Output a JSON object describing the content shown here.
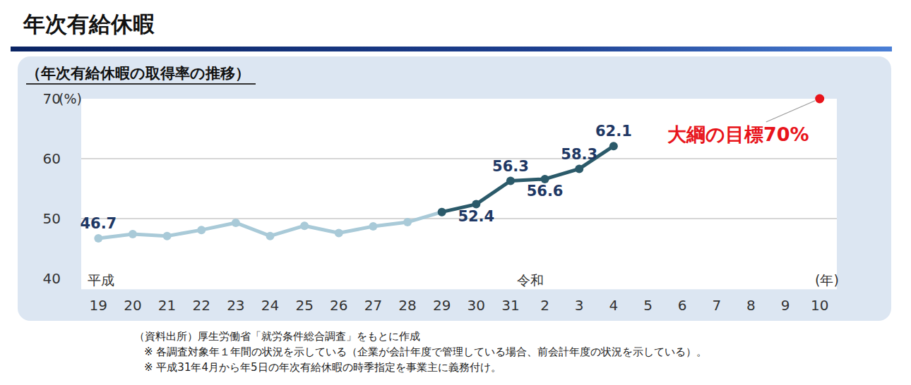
{
  "page_title": "年次有給休暇",
  "chart_data": {
    "type": "line",
    "title": "（年次有給休暇の取得率の推移）",
    "y_label": "(%)",
    "x_label": "(年)",
    "categories": [
      "19",
      "20",
      "21",
      "22",
      "23",
      "24",
      "25",
      "26",
      "27",
      "28",
      "29",
      "30",
      "31",
      "2",
      "3",
      "4",
      "5",
      "6",
      "7",
      "8",
      "9",
      "10"
    ],
    "era_labels": [
      {
        "text": "平成",
        "category": "19"
      },
      {
        "text": "令和",
        "category": "31"
      }
    ],
    "series": [
      {
        "color": "#a9cad8",
        "marker": "circle",
        "line_style": "solid",
        "values": [
          46.7,
          47.4,
          47.1,
          48.1,
          49.3,
          47.1,
          48.8,
          47.6,
          48.7,
          49.4,
          51.1,
          null,
          null,
          null,
          null,
          null,
          null,
          null,
          null,
          null,
          null,
          null
        ],
        "value_labels": [
          "46.7",
          null,
          null,
          null,
          null,
          null,
          null,
          null,
          null,
          null,
          null,
          null,
          null,
          null,
          null,
          null,
          null,
          null,
          null,
          null,
          null,
          null
        ]
      },
      {
        "color": "#2b5a6a",
        "marker": "circle",
        "line_style": "solid",
        "values": [
          null,
          null,
          null,
          null,
          null,
          null,
          null,
          null,
          null,
          null,
          51.1,
          52.4,
          56.3,
          56.6,
          58.3,
          62.1,
          null,
          null,
          null,
          null,
          null,
          null
        ],
        "value_labels": [
          null,
          null,
          null,
          null,
          null,
          null,
          null,
          null,
          null,
          null,
          null,
          "52.4",
          "56.3",
          "56.6",
          "58.3",
          "62.1",
          null,
          null,
          null,
          null,
          null,
          null
        ]
      },
      {
        "color": "#e8141b",
        "marker": "circle",
        "label": "大綱の目標70%",
        "values": [
          null,
          null,
          null,
          null,
          null,
          null,
          null,
          null,
          null,
          null,
          null,
          null,
          null,
          null,
          null,
          null,
          null,
          null,
          null,
          null,
          null,
          70
        ]
      }
    ],
    "ylim": [
      40,
      70
    ],
    "yticks": [
      40,
      50,
      60,
      70
    ],
    "grid": true,
    "data_labels": true,
    "footnotes": [
      "（資料出所）厚生労働省「就労条件総合調査」をもとに作成",
      "※ 各調査対象年１年間の状況を示している（企業が会計年度で管理している場合、前会計年度の状況を示している）。",
      "※ 平成31年4月から年5日の年次有給休暇の時季指定を事業主に義務付け。"
    ]
  }
}
